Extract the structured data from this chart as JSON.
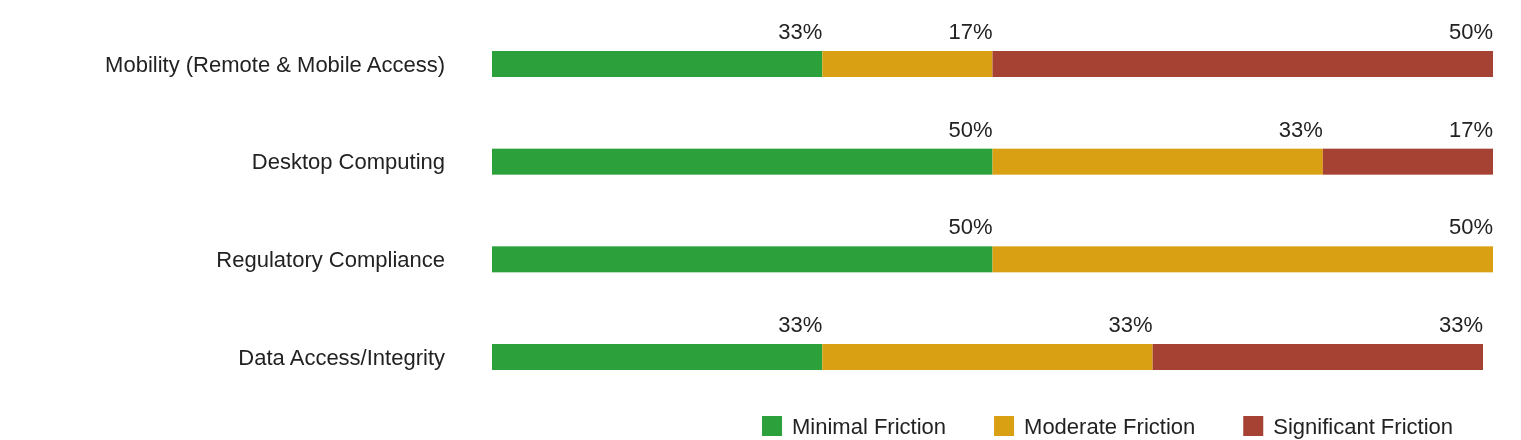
{
  "chart_data": {
    "type": "bar",
    "orientation": "horizontal",
    "stacked": true,
    "categories": [
      "Mobility (Remote & Mobile Access)",
      "Desktop Computing",
      "Regulatory Compliance",
      "Data Access/Integrity"
    ],
    "xlim": [
      0,
      100
    ],
    "tick_labels": "y",
    "legend": "bottom right",
    "series": [
      {
        "name": "Minimal Friction",
        "color": "#2ca03a",
        "values": [
          33,
          50,
          50,
          33
        ],
        "value_labels": [
          "33%",
          "50%",
          "50%",
          "33%"
        ]
      },
      {
        "name": "Moderate Friction",
        "color": "#d9a013",
        "values": [
          17,
          33,
          50,
          33
        ],
        "value_labels": [
          "17%",
          "33%",
          "50%",
          "33%"
        ]
      },
      {
        "name": "Significant Friction",
        "color": "#a54233",
        "values": [
          50,
          17,
          0,
          33
        ],
        "value_labels": [
          "50%",
          "17%",
          null,
          "33%"
        ]
      }
    ]
  }
}
